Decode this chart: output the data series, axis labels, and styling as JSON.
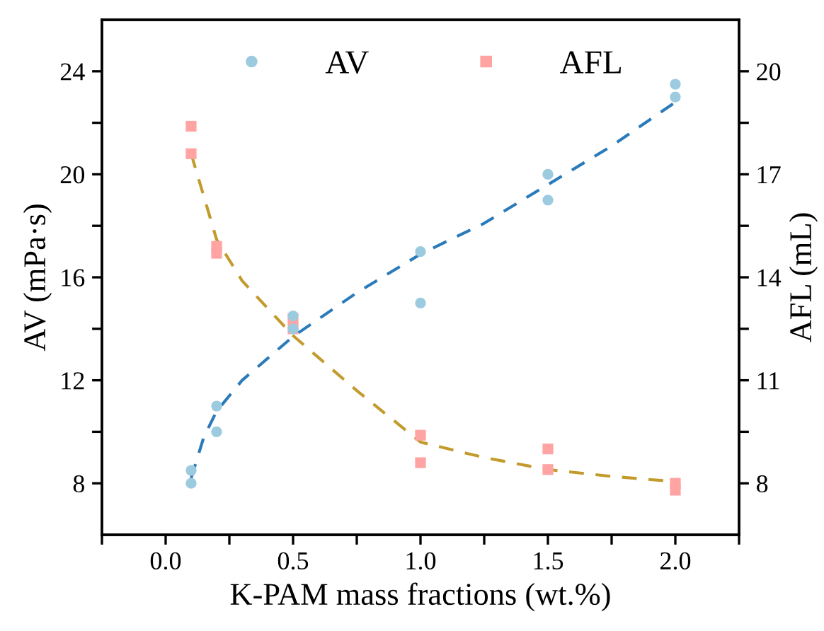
{
  "chart_data": {
    "type": "scatter",
    "xlabel": "K-PAM mass fractions (wt.%)",
    "ylabel": "AV (mPa·s)",
    "y2label": "AFL (mL)",
    "xlim": [
      -0.25,
      2.25
    ],
    "xticks": [
      {
        "value": -0.25,
        "label": null
      },
      {
        "value": 0,
        "label": "0.0"
      },
      {
        "value": 0.25,
        "label": null
      },
      {
        "value": 0.5,
        "label": "0.5"
      },
      {
        "value": 0.75,
        "label": null
      },
      {
        "value": 1,
        "label": "1.0"
      },
      {
        "value": 1.25,
        "label": null
      },
      {
        "value": 1.5,
        "label": "1.5"
      },
      {
        "value": 1.75,
        "label": null
      },
      {
        "value": 2,
        "label": "2.0"
      },
      {
        "value": 2.25,
        "label": null
      }
    ],
    "ylim": [
      6,
      26
    ],
    "yticks": [
      8,
      {
        "value": 10,
        "label": null
      },
      12,
      {
        "value": 14,
        "label": null
      },
      16,
      {
        "value": 18,
        "label": null
      },
      20,
      {
        "value": 22,
        "label": null
      },
      24
    ],
    "y2lim": [
      6.5,
      21.5
    ],
    "y2ticks": [
      8,
      {
        "value": 9.5,
        "label": null
      },
      11,
      {
        "value": 12.5,
        "label": null
      },
      14,
      {
        "value": 15.5,
        "label": null
      },
      17,
      {
        "value": 18.5,
        "label": null
      },
      20
    ],
    "legend": "top",
    "grid": false,
    "series": [
      {
        "name": "AV",
        "marker": "circle",
        "color": "#9ccbe0",
        "x": [
          0.1,
          0.1,
          0.2,
          0.2,
          0.5,
          0.5,
          1.0,
          1.0,
          1.5,
          1.5,
          2.0,
          2.0
        ],
        "values": [
          8.5,
          8.0,
          11.0,
          10.0,
          14.5,
          14.0,
          17.0,
          15.0,
          20.0,
          19.0,
          23.5,
          23.0
        ]
      },
      {
        "name": "AFL",
        "marker": "square",
        "axis": "y2",
        "color": "#ffa3a3",
        "x": [
          0.1,
          0.1,
          0.2,
          0.2,
          0.5,
          0.5,
          1.0,
          1.0,
          1.5,
          1.5,
          2.0,
          2.0
        ],
        "values": [
          18.4,
          17.6,
          14.9,
          14.7,
          12.8,
          12.5,
          9.4,
          8.6,
          9.0,
          8.4,
          8.0,
          7.8
        ]
      },
      {
        "type": "line",
        "line_style": "dashed",
        "marker": "none",
        "color": "#2b7bba",
        "x": [
          0.1,
          0.15,
          0.2,
          0.3,
          0.5,
          0.75,
          1.0,
          1.25,
          1.5,
          1.75,
          2.0
        ],
        "values": [
          8.2,
          9.8,
          10.8,
          12.0,
          13.7,
          15.4,
          16.9,
          18.1,
          19.6,
          21.1,
          22.8
        ]
      },
      {
        "type": "line",
        "line_style": "dashed",
        "marker": "none",
        "axis": "y2",
        "color": "#c29b2c",
        "x": [
          0.1,
          0.2,
          0.3,
          0.5,
          0.75,
          1.0,
          1.25,
          1.5,
          1.75,
          2.0
        ],
        "values": [
          17.6,
          15.1,
          13.9,
          12.3,
          10.7,
          9.2,
          8.75,
          8.4,
          8.2,
          8.05
        ]
      }
    ]
  }
}
